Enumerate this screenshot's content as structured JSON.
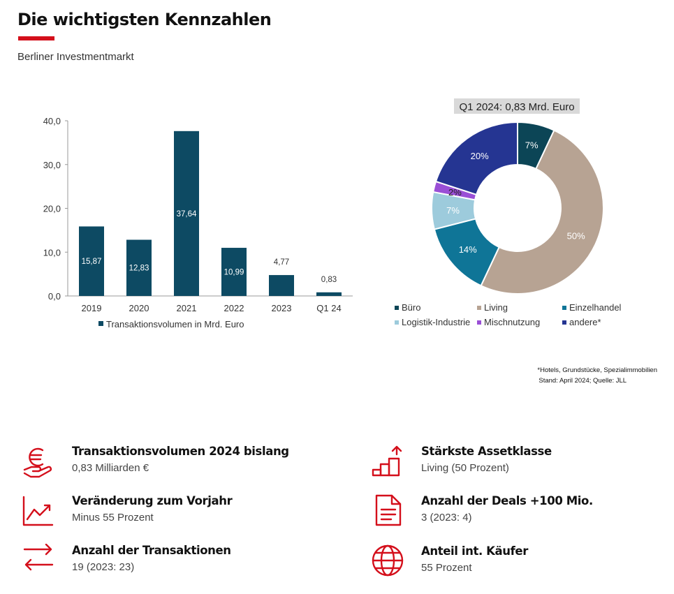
{
  "header": {
    "title": "Die wichtigsten Kennzahlen",
    "subtitle": "Berliner Investmentmarkt",
    "accent_color": "#d40f1b"
  },
  "chart_data": [
    {
      "type": "bar",
      "categories": [
        "2019",
        "2020",
        "2021",
        "2022",
        "2023",
        "Q1 24"
      ],
      "series": [
        {
          "name": "Transaktionsvolumen in Mrd. Euro",
          "values": [
            15.87,
            12.83,
            37.64,
            10.99,
            4.77,
            0.83
          ],
          "labels": [
            "15,87",
            "12,83",
            "37,64",
            "10,99",
            "4,77",
            "0,83"
          ],
          "color": "#0d4a63"
        }
      ],
      "ylim": [
        0,
        40
      ],
      "yticks": [
        0,
        10,
        20,
        30,
        40
      ],
      "ytick_labels": [
        "0,0",
        "10,0",
        "20,0",
        "30,0",
        "40,0"
      ],
      "legend_position": "bottom"
    },
    {
      "type": "pie",
      "title": "Q1 2024: 0,83 Mrd. Euro",
      "slices": [
        {
          "name": "Büro",
          "value": 7,
          "label": "7%",
          "color": "#0c4556"
        },
        {
          "name": "Living",
          "value": 50,
          "label": "50%",
          "color": "#b7a393"
        },
        {
          "name": "Einzelhandel",
          "value": 14,
          "label": "14%",
          "color": "#0f7597"
        },
        {
          "name": "Logistik-Industrie",
          "value": 7,
          "label": "7%",
          "color": "#9dcbdc"
        },
        {
          "name": "Mischnutzung",
          "value": 2,
          "label": "2%",
          "color": "#9a4fd6"
        },
        {
          "name": "andere*",
          "value": 20,
          "label": "20%",
          "color": "#253592"
        }
      ],
      "legend_position": "bottom"
    }
  ],
  "footnote": {
    "line1": "*Hotels, Grundstücke, Spezialimmobilien",
    "line2": "Stand: April 2024; Quelle: JLL"
  },
  "kpis": [
    {
      "icon": "euro-hand-icon",
      "label": "Transaktionsvolumen 2024 bislang",
      "value": "0,83 Milliarden €"
    },
    {
      "icon": "chart-trend-icon",
      "label": "Veränderung zum Vorjahr",
      "value": "Minus 55 Prozent"
    },
    {
      "icon": "exchange-arrows-icon",
      "label": "Anzahl der Transaktionen",
      "value": "19 (2023: 23)"
    },
    {
      "icon": "growth-steps-icon",
      "label": "Stärkste Assetklasse",
      "value": "Living (50 Prozent)"
    },
    {
      "icon": "document-icon",
      "label": "Anzahl der Deals +100 Mio.",
      "value": "3 (2023: 4)"
    },
    {
      "icon": "globe-icon",
      "label": "Anteil int. Käufer",
      "value": "55 Prozent"
    }
  ]
}
